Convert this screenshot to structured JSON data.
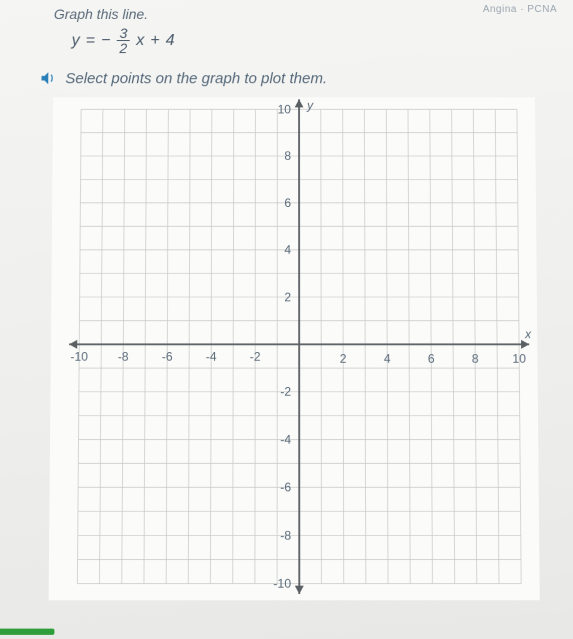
{
  "header": {
    "partial_title": "Graph this line.",
    "corner_text": "Angina · PCNA"
  },
  "equation": {
    "lhs": "y",
    "eq": "=",
    "neg": "−",
    "numerator": "3",
    "denominator": "2",
    "var": "x",
    "plus": "+",
    "const": "4"
  },
  "instruction": "Select points on the graph to plot them.",
  "graph": {
    "type": "cartesian-grid",
    "xlim": [
      -10,
      10
    ],
    "ylim": [
      -10,
      10
    ],
    "tick_step": 1,
    "label_step": 2,
    "x_axis_label": "x",
    "y_axis_label": "y",
    "x_ticks_shown": [
      "-10",
      "-8",
      "-6",
      "-4",
      "-2",
      "2",
      "4",
      "6",
      "8",
      "10"
    ],
    "y_ticks_shown": [
      "10",
      "8",
      "6",
      "4",
      "2",
      "-2",
      "-4",
      "-6",
      "-8",
      "-10"
    ],
    "grid_color": "#c7c8c6",
    "axis_color": "#5a5f63",
    "background_color": "#fbfbf9",
    "label_color": "#5a6a7a",
    "axis_label_fontsize": 12,
    "tick_label_fontsize": 12,
    "arrowheads": true
  },
  "colors": {
    "page_bg": "#f2f2f0",
    "text": "#4a5a6a",
    "speaker": "#2a7fb8",
    "progress": "#2e9e3a"
  }
}
